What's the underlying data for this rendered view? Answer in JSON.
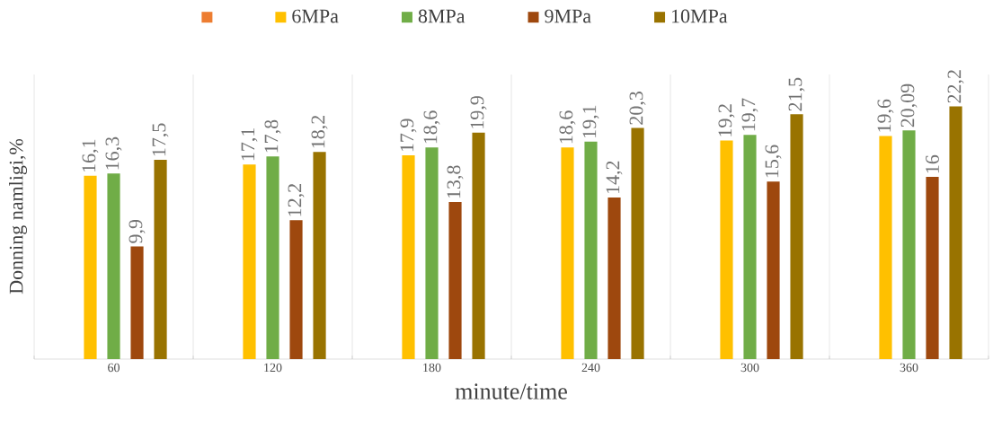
{
  "chart_data": {
    "type": "bar",
    "xlabel": "minute/time",
    "ylabel": "Donning namligi,%",
    "categories": [
      "60",
      "120",
      "180",
      "240",
      "300",
      "360"
    ],
    "series": [
      {
        "color": "#ed7d31",
        "values": [
          null,
          null,
          null,
          null,
          null,
          null
        ]
      },
      {
        "name": "6MPa",
        "color": "#ffc000",
        "values": [
          16.1,
          17.1,
          17.9,
          18.6,
          19.2,
          19.6
        ],
        "value_labels": [
          "16,1",
          "17,1",
          "17,9",
          "18,6",
          "19,2",
          "19,6"
        ]
      },
      {
        "name": "8MPa",
        "color": "#70ad47",
        "values": [
          16.3,
          17.8,
          18.6,
          19.1,
          19.7,
          20.09
        ],
        "value_labels": [
          "16,3",
          "17,8",
          "18,6",
          "19,1",
          "19,7",
          "20,09"
        ]
      },
      {
        "name": "9MPa",
        "color": "#9e480e",
        "values": [
          9.9,
          12.2,
          13.8,
          14.2,
          15.6,
          16
        ],
        "value_labels": [
          "9,9",
          "12,2",
          "13,8",
          "14,2",
          "15,6",
          "16"
        ]
      },
      {
        "name": "10MPa",
        "color": "#997300",
        "values": [
          17.5,
          18.2,
          19.9,
          20.3,
          21.5,
          22.2
        ],
        "value_labels": [
          "17,5",
          "18,2",
          "19,9",
          "20,3",
          "21,5",
          "22,2"
        ]
      }
    ],
    "ylim": [
      0,
      25
    ],
    "tick_labels": "x",
    "grid": "x",
    "legend": "top"
  }
}
